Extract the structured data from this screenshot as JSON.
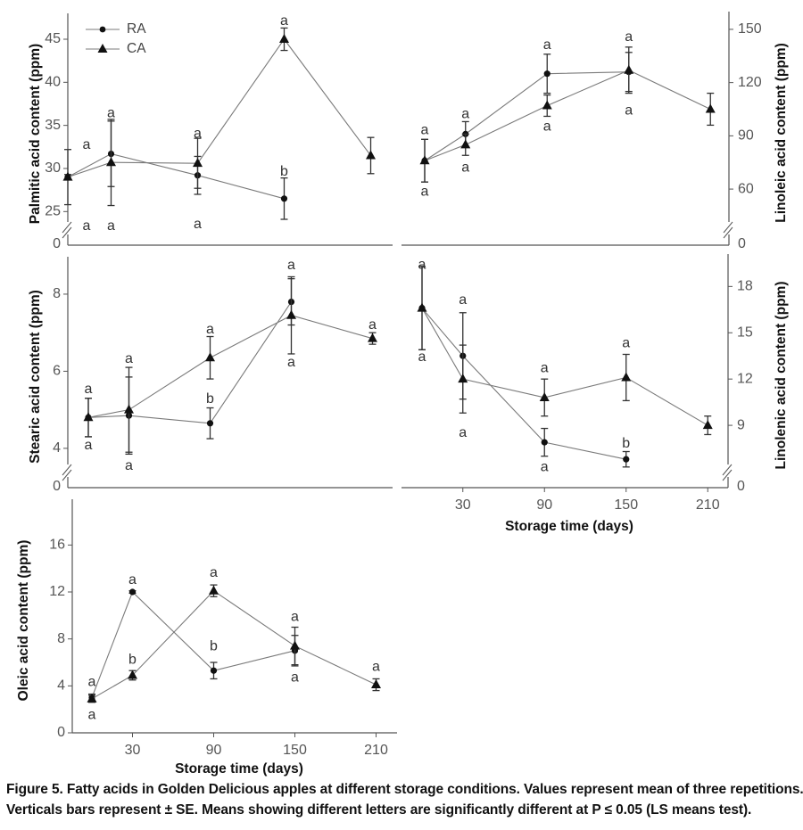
{
  "legend": {
    "items": [
      {
        "name": "RA",
        "marker": "circle"
      },
      {
        "name": "CA",
        "marker": "triangle"
      }
    ]
  },
  "caption": {
    "line1": "Figure 5. Fatty acids in Golden Delicious apples at different storage conditions. Values represent mean of three repetitions.",
    "line2": "Verticals bars represent ± SE. Means showing different letters are significantly different at P ≤ 0.05 (LS means test)."
  },
  "colors": {
    "line": "#7a7a7a",
    "axis": "#555555",
    "marker": "#111111",
    "text": "#333333"
  },
  "chart_data": [
    {
      "id": "palmitic",
      "type": "line",
      "title": "",
      "ylabel": "Palmitic acid content (ppm)",
      "xlabel": "",
      "x": [
        0,
        30,
        90,
        150,
        210
      ],
      "xticklabels": [],
      "ylim": [
        21.1,
        48
      ],
      "yticks": [
        25,
        30,
        35,
        40,
        45
      ],
      "y_break_label": "0",
      "series": [
        {
          "name": "RA",
          "values": [
            29,
            31.7,
            29.2,
            26.5,
            null
          ],
          "errors": [
            0.3,
            3.8,
            2.2,
            2.4,
            null
          ]
        },
        {
          "name": "CA",
          "values": [
            29,
            30.7,
            30.6,
            45,
            31.5
          ],
          "errors": [
            3.2,
            5.0,
            2.9,
            1.3,
            2.1
          ]
        }
      ],
      "letters": [
        {
          "i": 0,
          "y": 32.7,
          "text": "a"
        },
        {
          "i": 0,
          "y": 23.3,
          "text": "a"
        },
        {
          "i": 1,
          "y": 36.4,
          "text": "a"
        },
        {
          "i": 1,
          "y": 23.3,
          "text": "a"
        },
        {
          "i": 2,
          "y": 34.0,
          "text": "a"
        },
        {
          "i": 2,
          "y": 23.5,
          "text": "a"
        },
        {
          "i": 3,
          "y": 47.1,
          "text": "a"
        },
        {
          "i": 3,
          "y": 29.6,
          "text": "b"
        }
      ]
    },
    {
      "id": "linoleic",
      "type": "line",
      "title": "",
      "ylabel": "Linoleic acid content (ppm)",
      "xlabel": "",
      "x": [
        0,
        30,
        90,
        150,
        210
      ],
      "xticklabels": [],
      "ylim": [
        28.4,
        160
      ],
      "yticks": [
        60,
        90,
        120,
        150
      ],
      "y_break_label": "0",
      "series": [
        {
          "name": "RA",
          "values": [
            76,
            91,
            125,
            126,
            null
          ],
          "errors": [
            12,
            7,
            11,
            11,
            null
          ]
        },
        {
          "name": "CA",
          "values": [
            76,
            85,
            107,
            127,
            105
          ],
          "errors": [
            12,
            6,
            6,
            13,
            9
          ]
        }
      ],
      "letters": [
        {
          "i": 0,
          "y": 93,
          "text": "a"
        },
        {
          "i": 0,
          "y": 58.5,
          "text": "a"
        },
        {
          "i": 1,
          "y": 102,
          "text": "a"
        },
        {
          "i": 1,
          "y": 72,
          "text": "a"
        },
        {
          "i": 2,
          "y": 141,
          "text": "a"
        },
        {
          "i": 2,
          "y": 95,
          "text": "a"
        },
        {
          "i": 3,
          "y": 145.5,
          "text": "a"
        },
        {
          "i": 3,
          "y": 104,
          "text": "a"
        }
      ]
    },
    {
      "id": "stearic",
      "type": "line",
      "title": "",
      "ylabel": "Stearic acid content (ppm)",
      "xlabel": "",
      "x": [
        0,
        30,
        90,
        150,
        210
      ],
      "xticklabels": [],
      "ylim": [
        2.98,
        8.97
      ],
      "yticks": [
        4,
        6,
        8
      ],
      "y_break_label": "0",
      "series": [
        {
          "name": "RA",
          "values": [
            4.8,
            4.85,
            4.65,
            7.8,
            null
          ],
          "errors": [
            0.5,
            1.0,
            0.4,
            0.6,
            null
          ]
        },
        {
          "name": "CA",
          "values": [
            4.8,
            5.0,
            6.35,
            7.45,
            6.85
          ],
          "errors": [
            0.5,
            1.1,
            0.55,
            1.0,
            0.15
          ]
        }
      ],
      "letters": [
        {
          "i": 0,
          "y": 5.53,
          "text": "a"
        },
        {
          "i": 0,
          "y": 4.07,
          "text": "a"
        },
        {
          "i": 1,
          "y": 6.31,
          "text": "a"
        },
        {
          "i": 1,
          "y": 3.54,
          "text": "a"
        },
        {
          "i": 2,
          "y": 7.08,
          "text": "a"
        },
        {
          "i": 2,
          "y": 5.27,
          "text": "b"
        },
        {
          "i": 3,
          "y": 8.74,
          "text": "a"
        },
        {
          "i": 3,
          "y": 6.22,
          "text": "a"
        },
        {
          "i": 4,
          "y": 7.19,
          "text": "a"
        }
      ]
    },
    {
      "id": "linolenic",
      "type": "line",
      "title": "",
      "ylabel": "Linolenic acid content (ppm)",
      "xlabel": "Storage time (days)",
      "x": [
        0,
        30,
        90,
        150,
        210
      ],
      "xticklabels": [
        "",
        "30",
        "90",
        "150",
        "210"
      ],
      "ylim": [
        4.96,
        20.1
      ],
      "yticks": [
        9,
        12,
        15,
        18
      ],
      "y_break_label": "0",
      "series": [
        {
          "name": "RA",
          "values": [
            16.6,
            13.5,
            7.9,
            6.8,
            null
          ],
          "errors": [
            2.7,
            2.8,
            0.9,
            0.5,
            null
          ]
        },
        {
          "name": "CA",
          "values": [
            16.6,
            12.0,
            10.8,
            12.1,
            9.0
          ],
          "errors": [
            2.7,
            2.2,
            1.2,
            1.5,
            0.6
          ]
        }
      ],
      "letters": [
        {
          "i": 0,
          "y": 19.4,
          "text": "a"
        },
        {
          "i": 0,
          "y": 13.4,
          "text": "a"
        },
        {
          "i": 1,
          "y": 17.1,
          "text": "a"
        },
        {
          "i": 1,
          "y": 8.5,
          "text": "a"
        },
        {
          "i": 2,
          "y": 12.7,
          "text": "a"
        },
        {
          "i": 2,
          "y": 6.27,
          "text": "a"
        },
        {
          "i": 3,
          "y": 14.3,
          "text": "a"
        },
        {
          "i": 3,
          "y": 7.8,
          "text": "b"
        }
      ]
    },
    {
      "id": "oleic",
      "type": "line",
      "title": "",
      "ylabel": "Oleic acid content (ppm)",
      "xlabel": "Storage time (days)",
      "x": [
        0,
        30,
        90,
        150,
        210
      ],
      "xticklabels": [
        "",
        "30",
        "90",
        "150",
        "210"
      ],
      "ylim": [
        0,
        19.9
      ],
      "yticks": [
        0,
        4,
        8,
        12,
        16
      ],
      "y_break_label": "",
      "series": [
        {
          "name": "RA",
          "values": [
            3.0,
            12.0,
            5.3,
            7.0,
            null
          ],
          "errors": [
            0.3,
            0.1,
            0.7,
            1.3,
            null
          ]
        },
        {
          "name": "CA",
          "values": [
            2.9,
            4.9,
            12.1,
            7.4,
            4.1
          ],
          "errors": [
            0.3,
            0.4,
            0.5,
            1.6,
            0.5
          ]
        }
      ],
      "letters": [
        {
          "i": 0,
          "y": 4.3,
          "text": "a"
        },
        {
          "i": 0,
          "y": 1.5,
          "text": "a"
        },
        {
          "i": 1,
          "y": 13.0,
          "text": "a"
        },
        {
          "i": 1,
          "y": 6.2,
          "text": "b"
        },
        {
          "i": 2,
          "y": 13.6,
          "text": "a"
        },
        {
          "i": 2,
          "y": 7.35,
          "text": "b"
        },
        {
          "i": 3,
          "y": 9.85,
          "text": "a"
        },
        {
          "i": 3,
          "y": 4.7,
          "text": "a"
        },
        {
          "i": 4,
          "y": 5.6,
          "text": "a"
        }
      ]
    }
  ]
}
